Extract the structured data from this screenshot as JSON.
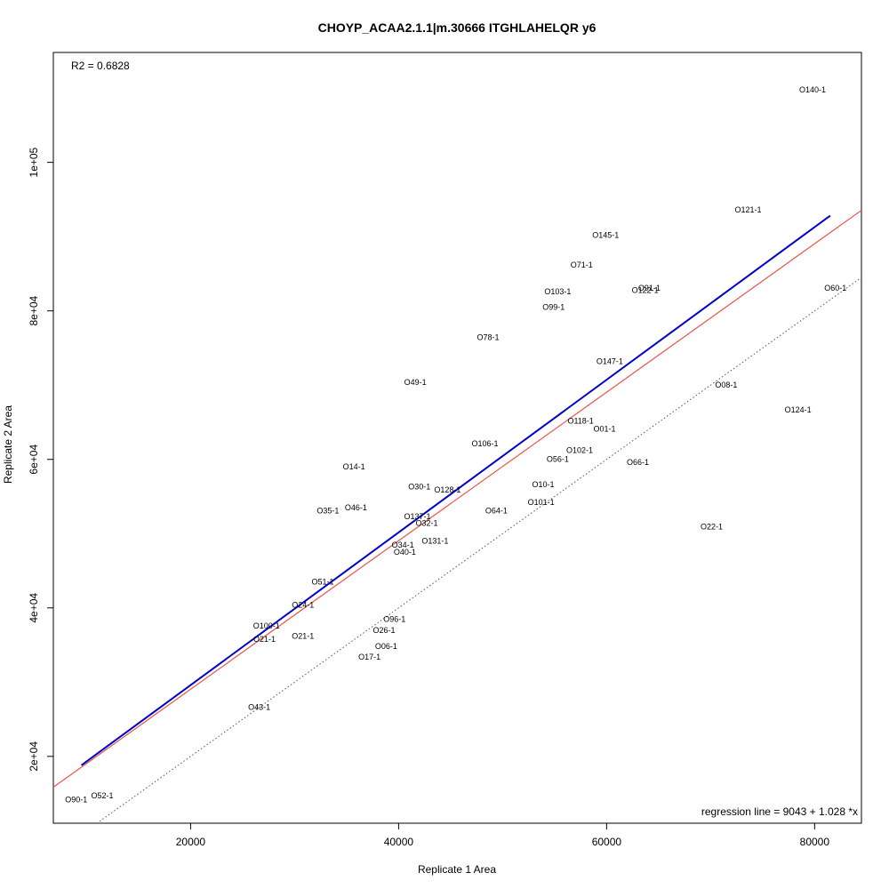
{
  "chart_data": {
    "type": "scatter",
    "title": "CHOYP_ACAA2.1.1|m.30666 ITGHLAHELQR y6",
    "xlabel": "Replicate 1 Area",
    "ylabel": "Replicate 2 Area",
    "xlim": [
      6800,
      84500
    ],
    "ylim": [
      11000,
      114800
    ],
    "x_ticks": [
      20000,
      40000,
      60000,
      80000
    ],
    "x_tick_labels": [
      "20000",
      "40000",
      "60000",
      "80000"
    ],
    "y_ticks": [
      20000,
      40000,
      60000,
      80000,
      100000
    ],
    "y_tick_labels": [
      "2e+04",
      "4e+04",
      "6e+04",
      "8e+04",
      "1e+05"
    ],
    "r2_text": "R2 = 0.6828",
    "regression_text": "regression line = 9043 + 1.028 *x",
    "regression_line": {
      "intercept": 9043,
      "slope": 1.028,
      "x_range": [
        9500,
        81500
      ],
      "color": "#0000cc"
    },
    "reference_line": {
      "intercept": 9043,
      "slope": 1.0,
      "color": "#e8554a"
    },
    "identity_line": {
      "intercept": 0,
      "slope": 1.0,
      "color": "#555555",
      "style": "dotted"
    },
    "points": [
      {
        "label": "O140-1",
        "x": 79800,
        "y": 109800
      },
      {
        "label": "O121-1",
        "x": 73600,
        "y": 93600
      },
      {
        "label": "O145-1",
        "x": 59900,
        "y": 90200
      },
      {
        "label": "O71-1",
        "x": 57600,
        "y": 86200
      },
      {
        "label": "O103-1",
        "x": 55300,
        "y": 82600
      },
      {
        "label": "O91-1",
        "x": 64100,
        "y": 83100
      },
      {
        "label": "O122-1",
        "x": 63700,
        "y": 82800
      },
      {
        "label": "O60-1",
        "x": 82000,
        "y": 83100
      },
      {
        "label": "O99-1",
        "x": 54900,
        "y": 80500
      },
      {
        "label": "O78-1",
        "x": 48600,
        "y": 76400
      },
      {
        "label": "O147-1",
        "x": 60300,
        "y": 73200
      },
      {
        "label": "O08-1",
        "x": 71500,
        "y": 70000
      },
      {
        "label": "O49-1",
        "x": 41600,
        "y": 70400
      },
      {
        "label": "O124-1",
        "x": 78400,
        "y": 66700
      },
      {
        "label": "O118-1",
        "x": 57500,
        "y": 65200
      },
      {
        "label": "O01-1",
        "x": 59800,
        "y": 64100
      },
      {
        "label": "O106-1",
        "x": 48300,
        "y": 62100
      },
      {
        "label": "O102-1",
        "x": 57400,
        "y": 61200
      },
      {
        "label": "O56-1",
        "x": 55300,
        "y": 60000
      },
      {
        "label": "O66-1",
        "x": 63000,
        "y": 59600
      },
      {
        "label": "O14-1",
        "x": 35700,
        "y": 59000
      },
      {
        "label": "O10-1",
        "x": 53900,
        "y": 56600
      },
      {
        "label": "O30-1",
        "x": 42000,
        "y": 56300
      },
      {
        "label": "O128-1",
        "x": 44700,
        "y": 55900
      },
      {
        "label": "O101-1",
        "x": 53700,
        "y": 54200
      },
      {
        "label": "O46-1",
        "x": 35900,
        "y": 53500
      },
      {
        "label": "O35-1",
        "x": 33200,
        "y": 53100
      },
      {
        "label": "O64-1",
        "x": 49400,
        "y": 53100
      },
      {
        "label": "O137-1",
        "x": 41800,
        "y": 52300
      },
      {
        "label": "O32-1",
        "x": 42700,
        "y": 51400
      },
      {
        "label": "O22-1",
        "x": 70100,
        "y": 50900
      },
      {
        "label": "O131-1",
        "x": 43500,
        "y": 49000
      },
      {
        "label": "O34-1",
        "x": 40400,
        "y": 48500
      },
      {
        "label": "O40-1",
        "x": 40600,
        "y": 47500
      },
      {
        "label": "O51-1",
        "x": 32700,
        "y": 43500
      },
      {
        "label": "O24-1",
        "x": 30800,
        "y": 40400
      },
      {
        "label": "O96-1",
        "x": 39600,
        "y": 38500
      },
      {
        "label": "O100-1",
        "x": 27300,
        "y": 37600
      },
      {
        "label": "O26-1",
        "x": 38600,
        "y": 37000
      },
      {
        "label": "O21-1",
        "x": 27100,
        "y": 35800
      },
      {
        "label": "O21-1",
        "x": 30800,
        "y": 36200
      },
      {
        "label": "O06-1",
        "x": 38800,
        "y": 34800
      },
      {
        "label": "O17-1",
        "x": 37200,
        "y": 33400
      },
      {
        "label": "O43-1",
        "x": 26600,
        "y": 26600
      },
      {
        "label": "O52-1",
        "x": 11500,
        "y": 14700
      },
      {
        "label": "O90-1",
        "x": 9000,
        "y": 14200
      }
    ]
  }
}
